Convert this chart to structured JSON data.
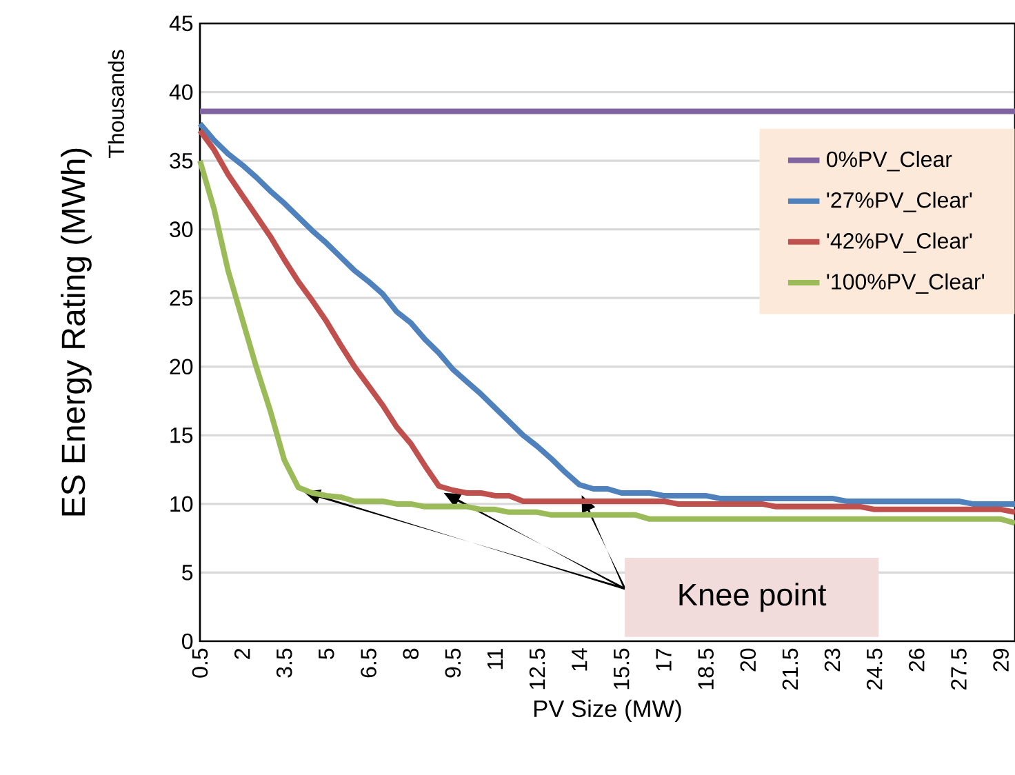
{
  "chart_data": {
    "type": "line",
    "xlabel": "PV Size (MW)",
    "ylabel": "ES Energy Rating (MWh)",
    "annotations": [
      "Thousands",
      {
        "text": "Knee point",
        "y": 11
      }
    ],
    "categories": [
      "0.5",
      null,
      null,
      "2",
      null,
      null,
      "3.5",
      null,
      null,
      "5",
      null,
      null,
      "6.5",
      null,
      null,
      "8",
      null,
      null,
      "9.5",
      null,
      null,
      "11",
      null,
      null,
      "12.5",
      null,
      null,
      "14",
      null,
      null,
      "15.5",
      null,
      null,
      "17",
      null,
      null,
      "18.5",
      null,
      null,
      "20",
      null,
      null,
      "21.5",
      null,
      null,
      "23",
      null,
      null,
      "24.5",
      null,
      null,
      "26",
      null,
      null,
      "27.5",
      null,
      null,
      "29",
      null
    ],
    "series": [
      {
        "name": "0%PV_Clear",
        "color": "#8064a2",
        "values": [
          38.6,
          38.6,
          38.6,
          38.6,
          38.6,
          38.6,
          38.6,
          38.6,
          38.6,
          38.6,
          38.6,
          38.6,
          38.6,
          38.6,
          38.6,
          38.6,
          38.6,
          38.6,
          38.6,
          38.6,
          38.6,
          38.6,
          38.6,
          38.6,
          38.6,
          38.6,
          38.6,
          38.6,
          38.6,
          38.6,
          38.6,
          38.6,
          38.6,
          38.6,
          38.6,
          38.6,
          38.6,
          38.6,
          38.6,
          38.6,
          38.6,
          38.6,
          38.6,
          38.6,
          38.6,
          38.6,
          38.6,
          38.6,
          38.6,
          38.6,
          38.6,
          38.6,
          38.6,
          38.6,
          38.6,
          38.6,
          38.6,
          38.6,
          38.6
        ]
      },
      {
        "name": "'27%PV_Clear'",
        "color": "#4f81bd",
        "values": [
          37.7,
          36.5,
          35.5,
          34.7,
          33.8,
          32.8,
          31.9,
          30.9,
          29.9,
          29.0,
          28.0,
          27.0,
          26.2,
          25.3,
          24.0,
          23.2,
          22.0,
          21.0,
          19.8,
          18.9,
          18.0,
          17.0,
          16.0,
          15.0,
          14.2,
          13.3,
          12.3,
          11.4,
          11.1,
          11.1,
          10.8,
          10.8,
          10.8,
          10.6,
          10.6,
          10.6,
          10.6,
          10.4,
          10.4,
          10.4,
          10.4,
          10.4,
          10.4,
          10.4,
          10.4,
          10.4,
          10.2,
          10.2,
          10.2,
          10.2,
          10.2,
          10.2,
          10.2,
          10.2,
          10.2,
          10.0,
          10.0,
          10.0,
          10.0
        ]
      },
      {
        "name": "'42%PV_Clear'",
        "color": "#c0504d",
        "values": [
          37.2,
          35.8,
          34.0,
          32.5,
          31.0,
          29.5,
          27.8,
          26.2,
          24.8,
          23.3,
          21.6,
          20.0,
          18.6,
          17.2,
          15.6,
          14.4,
          12.8,
          11.3,
          11.0,
          10.8,
          10.8,
          10.6,
          10.6,
          10.2,
          10.2,
          10.2,
          10.2,
          10.2,
          10.2,
          10.2,
          10.2,
          10.2,
          10.2,
          10.2,
          10.0,
          10.0,
          10.0,
          10.0,
          10.0,
          10.0,
          10.0,
          9.8,
          9.8,
          9.8,
          9.8,
          9.8,
          9.8,
          9.8,
          9.6,
          9.6,
          9.6,
          9.6,
          9.6,
          9.6,
          9.6,
          9.6,
          9.6,
          9.6,
          9.4
        ]
      },
      {
        "name": "'100%PV_Clear'",
        "color": "#9bbb59",
        "values": [
          35.0,
          31.5,
          27.0,
          23.5,
          20.0,
          16.8,
          13.2,
          11.2,
          10.8,
          10.6,
          10.5,
          10.2,
          10.2,
          10.2,
          10.0,
          10.0,
          9.8,
          9.8,
          9.8,
          9.8,
          9.6,
          9.6,
          9.4,
          9.4,
          9.4,
          9.2,
          9.2,
          9.2,
          9.2,
          9.2,
          9.2,
          9.2,
          8.9,
          8.9,
          8.9,
          8.9,
          8.9,
          8.9,
          8.9,
          8.9,
          8.9,
          8.9,
          8.9,
          8.9,
          8.9,
          8.9,
          8.9,
          8.9,
          8.9,
          8.9,
          8.9,
          8.9,
          8.9,
          8.9,
          8.9,
          8.9,
          8.9,
          8.9,
          8.6
        ]
      }
    ],
    "ylim": [
      0,
      45
    ],
    "yticks": [
      0,
      5,
      10,
      15,
      20,
      25,
      30,
      35,
      40,
      45
    ],
    "grid": "y",
    "legend": "top right",
    "marker": "none",
    "line_style": "solid"
  }
}
